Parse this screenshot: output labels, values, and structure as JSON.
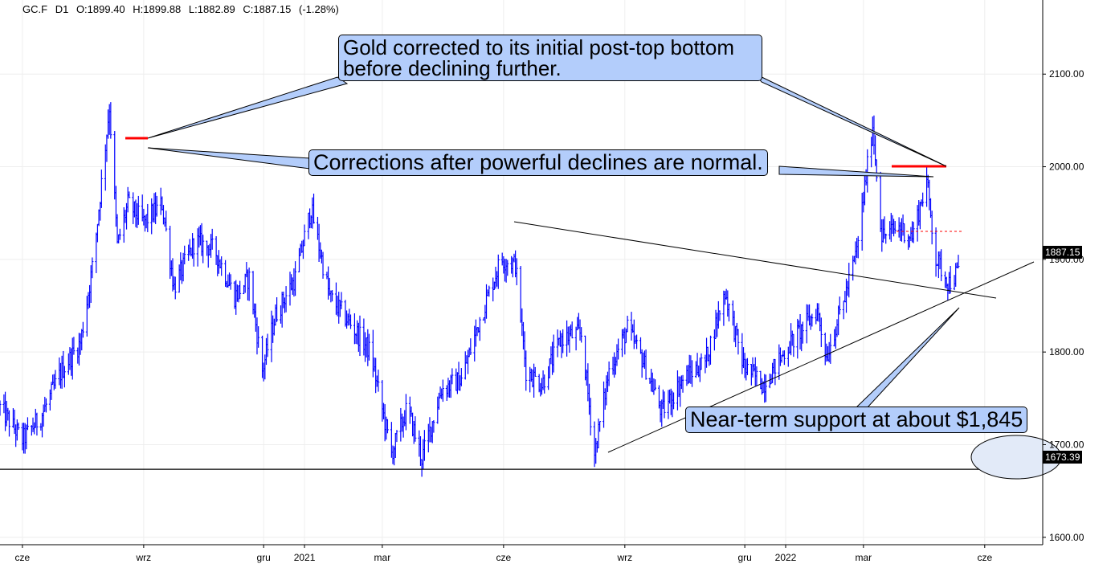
{
  "header": {
    "symbol": "GC.F",
    "timeframe": "D1",
    "open": "O:1899.40",
    "high": "H:1899.88",
    "low": "L:1882.89",
    "close": "C:1887.15",
    "change": "(-1.28%)"
  },
  "annotations": {
    "callout_top": "Gold corrected to its initial post-top bottom before declining further.",
    "callout_middle": "Corrections after powerful declines are normal.",
    "callout_bottom": "Near-term support at about $1,845"
  },
  "price_tags": {
    "last": "1887.15",
    "support": "1673.39"
  },
  "colors": {
    "series": "#0000ff",
    "marker": "#ff0000",
    "callout_fill": "#b3cdfb",
    "grid": "#eeeeee"
  },
  "chart_data": {
    "type": "ohlc",
    "ylim": [
      1592,
      2180
    ],
    "y_ticks": [
      "2100.00",
      "2000.00",
      "1900.00",
      "1800.00",
      "1700.00",
      "1600.00"
    ],
    "y_tick_values": [
      2100,
      2000,
      1900,
      1800,
      1700,
      1600
    ],
    "x_tick_labels": [
      "cze",
      "wrz",
      "gru",
      "2021",
      "mar",
      "cze",
      "wrz",
      "gru",
      "2022",
      "mar",
      "cze"
    ],
    "x_range": [
      "2020-05-15",
      "2022-07-15"
    ],
    "x_tick_dates": [
      "2020-06-01",
      "2020-09-01",
      "2020-12-01",
      "2021-01-01",
      "2021-03-01",
      "2021-06-01",
      "2021-09-01",
      "2021-12-01",
      "2022-01-01",
      "2022-03-01",
      "2022-06-01"
    ],
    "key_points": [
      {
        "date": "2020-05-15",
        "price": 1740
      },
      {
        "date": "2020-06-01",
        "price": 1705
      },
      {
        "date": "2020-06-15",
        "price": 1730
      },
      {
        "date": "2020-07-01",
        "price": 1780
      },
      {
        "date": "2020-07-15",
        "price": 1810
      },
      {
        "date": "2020-07-25",
        "price": 1900
      },
      {
        "date": "2020-08-06",
        "price": 2065
      },
      {
        "date": "2020-08-12",
        "price": 1915
      },
      {
        "date": "2020-08-20",
        "price": 1960
      },
      {
        "date": "2020-09-01",
        "price": 1940
      },
      {
        "date": "2020-09-15",
        "price": 1960
      },
      {
        "date": "2020-09-24",
        "price": 1870
      },
      {
        "date": "2020-10-10",
        "price": 1920
      },
      {
        "date": "2020-10-25",
        "price": 1910
      },
      {
        "date": "2020-11-09",
        "price": 1860
      },
      {
        "date": "2020-11-20",
        "price": 1880
      },
      {
        "date": "2020-11-30",
        "price": 1780
      },
      {
        "date": "2020-12-10",
        "price": 1840
      },
      {
        "date": "2020-12-25",
        "price": 1880
      },
      {
        "date": "2021-01-06",
        "price": 1955
      },
      {
        "date": "2021-01-20",
        "price": 1860
      },
      {
        "date": "2021-02-05",
        "price": 1830
      },
      {
        "date": "2021-02-20",
        "price": 1800
      },
      {
        "date": "2021-03-08",
        "price": 1690
      },
      {
        "date": "2021-03-20",
        "price": 1740
      },
      {
        "date": "2021-03-31",
        "price": 1685
      },
      {
        "date": "2021-04-15",
        "price": 1760
      },
      {
        "date": "2021-04-30",
        "price": 1770
      },
      {
        "date": "2021-05-15",
        "price": 1840
      },
      {
        "date": "2021-05-30",
        "price": 1900
      },
      {
        "date": "2021-06-10",
        "price": 1895
      },
      {
        "date": "2021-06-18",
        "price": 1780
      },
      {
        "date": "2021-06-30",
        "price": 1765
      },
      {
        "date": "2021-07-15",
        "price": 1815
      },
      {
        "date": "2021-07-30",
        "price": 1820
      },
      {
        "date": "2021-08-09",
        "price": 1690
      },
      {
        "date": "2021-08-20",
        "price": 1780
      },
      {
        "date": "2021-09-03",
        "price": 1825
      },
      {
        "date": "2021-09-15",
        "price": 1790
      },
      {
        "date": "2021-09-29",
        "price": 1735
      },
      {
        "date": "2021-10-15",
        "price": 1770
      },
      {
        "date": "2021-11-01",
        "price": 1790
      },
      {
        "date": "2021-11-16",
        "price": 1865
      },
      {
        "date": "2021-11-30",
        "price": 1785
      },
      {
        "date": "2021-12-15",
        "price": 1765
      },
      {
        "date": "2022-01-05",
        "price": 1810
      },
      {
        "date": "2022-01-25",
        "price": 1845
      },
      {
        "date": "2022-02-01",
        "price": 1795
      },
      {
        "date": "2022-02-15",
        "price": 1860
      },
      {
        "date": "2022-02-24",
        "price": 1910
      },
      {
        "date": "2022-03-08",
        "price": 2045
      },
      {
        "date": "2022-03-15",
        "price": 1925
      },
      {
        "date": "2022-03-28",
        "price": 1935
      },
      {
        "date": "2022-04-07",
        "price": 1925
      },
      {
        "date": "2022-04-18",
        "price": 1985
      },
      {
        "date": "2022-04-25",
        "price": 1900
      },
      {
        "date": "2022-05-05",
        "price": 1875
      },
      {
        "date": "2022-05-12",
        "price": 1887
      }
    ],
    "horizontal_line": 1673.39,
    "last_price": 1887.15
  }
}
